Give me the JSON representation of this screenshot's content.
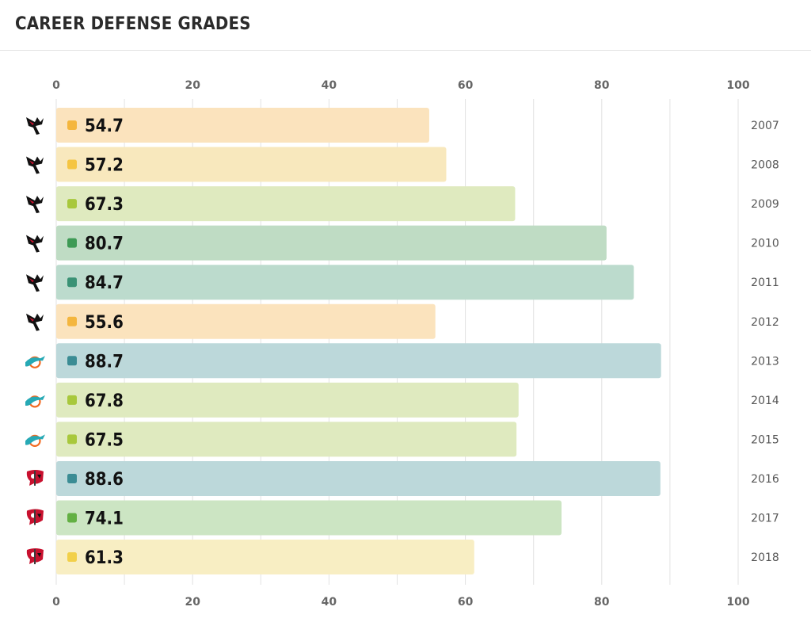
{
  "header": {
    "title": "CAREER DEFENSE GRADES"
  },
  "chart_data": {
    "type": "bar",
    "orientation": "horizontal",
    "title": "CAREER DEFENSE GRADES",
    "xlabel": "",
    "ylabel": "",
    "xlim": [
      0,
      100
    ],
    "x_ticks": [
      0,
      20,
      40,
      60,
      80,
      100
    ],
    "grid": true,
    "categories": [
      "2007",
      "2008",
      "2009",
      "2010",
      "2011",
      "2012",
      "2013",
      "2014",
      "2015",
      "2016",
      "2017",
      "2018"
    ],
    "values": [
      54.7,
      57.2,
      67.3,
      80.7,
      84.7,
      55.6,
      88.7,
      67.8,
      67.5,
      88.6,
      74.1,
      61.3
    ],
    "team_icons": [
      "falcons-icon",
      "falcons-icon",
      "falcons-icon",
      "falcons-icon",
      "falcons-icon",
      "falcons-icon",
      "dolphins-icon",
      "dolphins-icon",
      "dolphins-icon",
      "buccaneers-icon",
      "buccaneers-icon",
      "buccaneers-icon"
    ],
    "bar_colors": [
      "#fbe3bd",
      "#f8e8bd",
      "#dfeabf",
      "#bfdcc4",
      "#bcdbcd",
      "#fbe3bd",
      "#bcd8da",
      "#dfeabf",
      "#dfeabf",
      "#bcd8da",
      "#cce5c3",
      "#f8eec3"
    ],
    "dot_colors": [
      "#f4b63e",
      "#f5c542",
      "#a8c83c",
      "#3e9a55",
      "#3a9275",
      "#f4b63e",
      "#3b8c94",
      "#a8c83c",
      "#a8c83c",
      "#3b8c94",
      "#63b043",
      "#f2d049"
    ]
  }
}
